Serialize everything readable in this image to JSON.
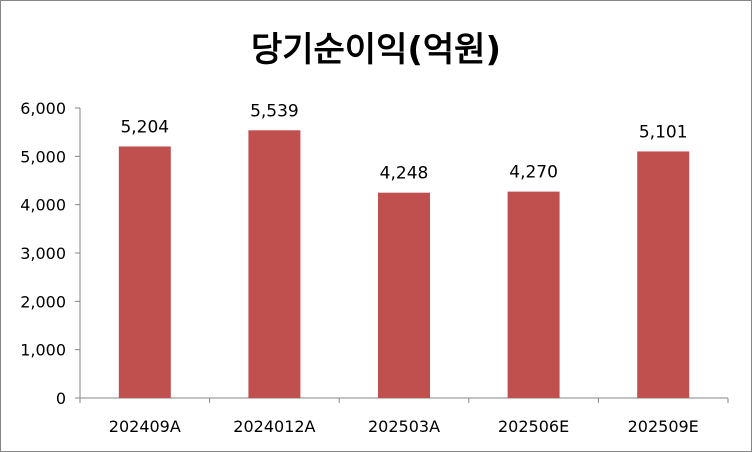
{
  "chart_data": {
    "type": "bar",
    "title": "당기순이익(억원)",
    "categories": [
      "202409A",
      "2024012A",
      "202503A",
      "202506E",
      "202509E"
    ],
    "values": [
      5204,
      5539,
      4248,
      4270,
      5101
    ],
    "data_labels": [
      "5,204",
      "5,539",
      "4,248",
      "4,270",
      "5,101"
    ],
    "y_ticks": [
      "0",
      "1,000",
      "2,000",
      "3,000",
      "4,000",
      "5,000",
      "6,000"
    ],
    "ylim": [
      0,
      6000
    ],
    "grid": false,
    "legend": "none",
    "bar_color": "#c0504d"
  }
}
